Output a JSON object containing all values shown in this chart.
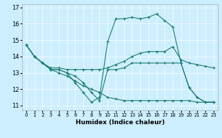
{
  "xlabel": "Humidex (Indice chaleur)",
  "bg_color": "#cceeff",
  "line_color": "#1a7a6e",
  "grid_color": "#ffffff",
  "xlim": [
    -0.5,
    23.5
  ],
  "ylim": [
    10.7,
    17.2
  ],
  "yticks": [
    11,
    12,
    13,
    14,
    15,
    16,
    17
  ],
  "xticks": [
    0,
    1,
    2,
    3,
    4,
    5,
    6,
    7,
    8,
    9,
    10,
    11,
    12,
    13,
    14,
    15,
    16,
    17,
    18,
    19,
    20,
    21,
    22,
    23
  ],
  "lines": [
    {
      "x": [
        0,
        1,
        2,
        3,
        4,
        5,
        6,
        7,
        8,
        9,
        10,
        11,
        12,
        13,
        14,
        15,
        16,
        17,
        18,
        19,
        20,
        21,
        22,
        23
      ],
      "y": [
        14.7,
        14.0,
        13.6,
        13.2,
        13.2,
        13.0,
        12.4,
        11.8,
        11.2,
        11.5,
        14.9,
        16.3,
        16.3,
        16.4,
        16.3,
        16.4,
        16.6,
        16.2,
        15.8,
        13.6,
        12.1,
        11.5,
        11.2,
        11.2
      ]
    },
    {
      "x": [
        0,
        1,
        2,
        3,
        4,
        5,
        6,
        7,
        8,
        9,
        10,
        11,
        12,
        13,
        14,
        15,
        16,
        17,
        18,
        19,
        20,
        21,
        22,
        23
      ],
      "y": [
        14.7,
        14.0,
        13.6,
        13.3,
        13.3,
        13.2,
        13.2,
        13.2,
        13.2,
        13.2,
        13.3,
        13.5,
        13.7,
        14.0,
        14.2,
        14.3,
        14.3,
        14.3,
        14.6,
        13.8,
        13.6,
        13.5,
        13.4,
        13.3
      ]
    },
    {
      "x": [
        0,
        1,
        2,
        3,
        4,
        5,
        6,
        7,
        8,
        9,
        10,
        11,
        12,
        13,
        14,
        15,
        16,
        17,
        18,
        19,
        20,
        21,
        22,
        23
      ],
      "y": [
        14.7,
        14.0,
        13.6,
        13.2,
        13.0,
        12.8,
        12.5,
        12.2,
        12.0,
        11.8,
        11.5,
        11.4,
        11.3,
        11.3,
        11.3,
        11.3,
        11.3,
        11.3,
        11.3,
        11.3,
        11.3,
        11.2,
        11.2,
        11.2
      ]
    },
    {
      "x": [
        0,
        1,
        2,
        3,
        4,
        5,
        6,
        7,
        8,
        9,
        10,
        11,
        12,
        13,
        14,
        15,
        16,
        17,
        18,
        19,
        20,
        21,
        22,
        23
      ],
      "y": [
        14.7,
        14.0,
        13.6,
        13.2,
        13.2,
        13.0,
        12.8,
        12.4,
        11.8,
        11.3,
        13.2,
        13.2,
        13.3,
        13.6,
        13.6,
        13.6,
        13.6,
        13.6,
        13.6,
        13.6,
        12.1,
        11.5,
        11.2,
        11.2
      ]
    }
  ]
}
